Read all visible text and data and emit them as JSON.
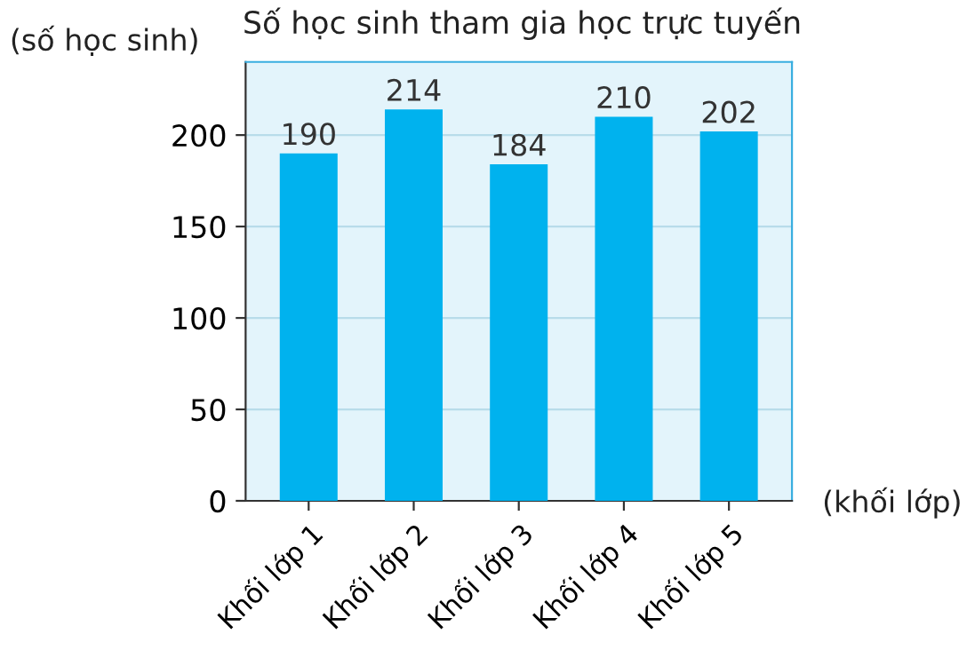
{
  "chart_data": {
    "type": "bar",
    "title": "Số học sinh tham gia học trực tuyến",
    "ylabel": "(số học sinh)",
    "xlabel": "(khối lớp)",
    "categories": [
      "Khối lớp 1",
      "Khối lớp 2",
      "Khối lớp 3",
      "Khối lớp 4",
      "Khối lớp 5"
    ],
    "values": [
      190,
      214,
      184,
      210,
      202
    ],
    "color": "#00b2ee",
    "ylim": [
      0,
      240
    ],
    "yticks": [
      0,
      50,
      100,
      150,
      200
    ],
    "grid": "y",
    "data_labels": true,
    "legend": false
  }
}
